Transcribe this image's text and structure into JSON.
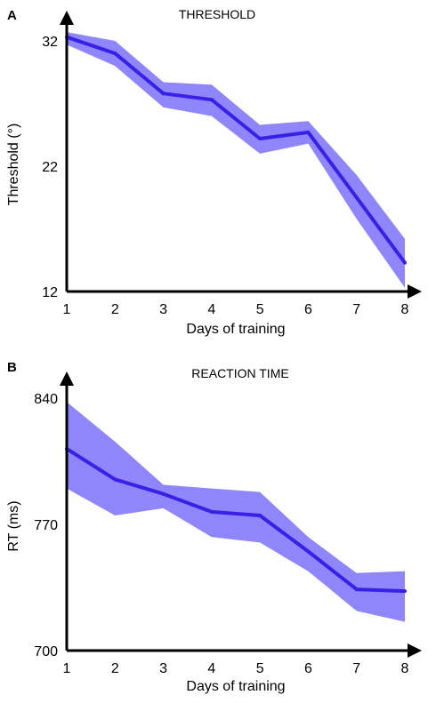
{
  "colors": {
    "line": "#3a1fe6",
    "band": "#8f86fb",
    "axis": "#000000"
  },
  "chart_data": [
    {
      "panel": "A",
      "type": "line",
      "title": "THRESHOLD",
      "xlabel": "Days of training",
      "ylabel": "Threshold (°)",
      "x": [
        1,
        2,
        3,
        4,
        5,
        6,
        7,
        8
      ],
      "xticks": [
        "1",
        "2",
        "3",
        "4",
        "5",
        "6",
        "7",
        "8"
      ],
      "yticks": [
        "12",
        "22",
        "32"
      ],
      "yticks_values": [
        12,
        22,
        32
      ],
      "ylim": [
        12,
        33.7
      ],
      "xlim": [
        1,
        8.5
      ],
      "grid": false,
      "series": [
        {
          "values": [
            32.3,
            31.0,
            27.8,
            27.3,
            24.2,
            24.7,
            19.5,
            14.3
          ],
          "upper": [
            32.7,
            32.0,
            28.7,
            28.5,
            25.3,
            25.6,
            21.3,
            16.2
          ],
          "lower": [
            31.7,
            30.0,
            26.7,
            26.0,
            23.0,
            23.8,
            17.8,
            12.3
          ]
        }
      ]
    },
    {
      "panel": "B",
      "type": "line",
      "title": "REACTION TIME",
      "xlabel": "Days of training",
      "ylabel": "RT (ms)",
      "x": [
        1,
        2,
        3,
        4,
        5,
        6,
        7,
        8
      ],
      "xticks": [
        "1",
        "2",
        "3",
        "4",
        "5",
        "6",
        "7",
        "8"
      ],
      "yticks": [
        "700",
        "770",
        "840"
      ],
      "yticks_values": [
        700,
        770,
        840
      ],
      "ylim": [
        700,
        849
      ],
      "xlim": [
        1,
        8.5
      ],
      "grid": false,
      "series": [
        {
          "values": [
            812,
            795,
            787,
            777,
            775,
            755,
            734,
            733
          ],
          "upper": [
            838,
            816,
            792,
            790,
            788,
            763,
            743,
            744
          ],
          "lower": [
            790,
            775,
            779,
            763,
            760,
            744,
            722,
            716
          ]
        }
      ]
    }
  ]
}
